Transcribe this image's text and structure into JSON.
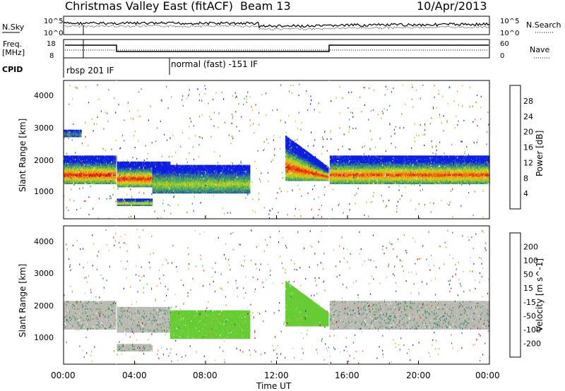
{
  "header": {
    "title": "Christmas Valley East (fitACF)",
    "beam": "Beam 13",
    "date": "10/Apr/2013"
  },
  "panels": {
    "nsky_label": "N.Sky",
    "nsky_ticks": [
      "10^5",
      "10^0"
    ],
    "nsearch_label": "N.Search",
    "freq_label_1": "Freq.",
    "freq_label_2": "[MHz]",
    "freq_ticks": [
      "18",
      "8"
    ],
    "nave_ticks": [
      "60",
      "0"
    ],
    "nave_label": "Nave",
    "cpid_label": "CPID",
    "cpid_1": "rbsp 201 IF",
    "cpid_2": "normal (fast) -151 IF"
  },
  "power_panel": {
    "ylabel": "Slant Range [km]",
    "yticks": [
      "4000",
      "3000",
      "2000",
      "1000"
    ],
    "colorbar_label": "Power [dB]",
    "colorbar_ticks": [
      "28",
      "24",
      "20",
      "16",
      "12",
      "8",
      "4"
    ],
    "colors": [
      "#0a1ee6",
      "#1f4fb8",
      "#2e7a8a",
      "#3d9a6a",
      "#66bb44",
      "#aacc22",
      "#ddcc11",
      "#f0a010",
      "#f06010",
      "#e81010"
    ]
  },
  "velocity_panel": {
    "ylabel": "Slant Range [km]",
    "yticks": [
      "4000",
      "3000",
      "2000",
      "1000"
    ],
    "colorbar_label": "Velocity [m s^-1]",
    "colorbar_ticks": [
      "200",
      "100",
      "50",
      "15",
      "-15",
      "-50",
      "-100",
      "-200"
    ],
    "colors": [
      "#2030b0",
      "#2e60a0",
      "#2a8a5a",
      "#66cc33",
      "#b8b8b0",
      "#c8c8c0",
      "#f0b020",
      "#f08010",
      "#f04010",
      "#e00000"
    ]
  },
  "xaxis": {
    "label": "Time UT",
    "ticks": [
      "00:00",
      "04:00",
      "08:00",
      "12:00",
      "16:00",
      "20:00",
      "00:00"
    ]
  },
  "chart_data": [
    {
      "type": "heatmap",
      "title": "Power",
      "x_range_hours": [
        0,
        24
      ],
      "y_range_km": [
        180,
        4600
      ],
      "bands": [
        {
          "t0": 0.0,
          "t1": 3.0,
          "r0": 1300,
          "r1": 2200,
          "peak_db": 28
        },
        {
          "t0": 3.0,
          "t1": 6.0,
          "r0": 1200,
          "r1": 2000,
          "peak_db": 28
        },
        {
          "t0": 3.0,
          "t1": 5.0,
          "r0": 600,
          "r1": 800,
          "peak_db": 20
        },
        {
          "t0": 5.0,
          "t1": 10.5,
          "r0": 1000,
          "r1": 1900,
          "peak_db": 16
        },
        {
          "t0": 12.5,
          "t1": 15.0,
          "r0": 1400,
          "r1": 2800,
          "peak_db": 28
        },
        {
          "t0": 15.0,
          "t1": 24.0,
          "r0": 1300,
          "r1": 2200,
          "peak_db": 26
        },
        {
          "t0": 0.0,
          "t1": 1.0,
          "r0": 2800,
          "r1": 3000,
          "peak_db": 8
        }
      ]
    },
    {
      "type": "heatmap",
      "title": "Velocity",
      "x_range_hours": [
        0,
        24
      ],
      "y_range_km": [
        180,
        4600
      ],
      "bands": [
        {
          "t0": 0.0,
          "t1": 3.0,
          "r0": 1300,
          "r1": 2200,
          "vel": 0
        },
        {
          "t0": 3.0,
          "t1": 6.0,
          "r0": 1200,
          "r1": 2000,
          "vel": 0
        },
        {
          "t0": 3.0,
          "t1": 5.0,
          "r0": 600,
          "r1": 800,
          "vel": 0
        },
        {
          "t0": 6.0,
          "t1": 10.5,
          "r0": 1000,
          "r1": 1900,
          "vel": 50
        },
        {
          "t0": 12.5,
          "t1": 15.0,
          "r0": 1400,
          "r1": 2800,
          "vel": 50
        },
        {
          "t0": 15.0,
          "t1": 24.0,
          "r0": 1300,
          "r1": 2200,
          "vel": 0
        }
      ]
    }
  ]
}
